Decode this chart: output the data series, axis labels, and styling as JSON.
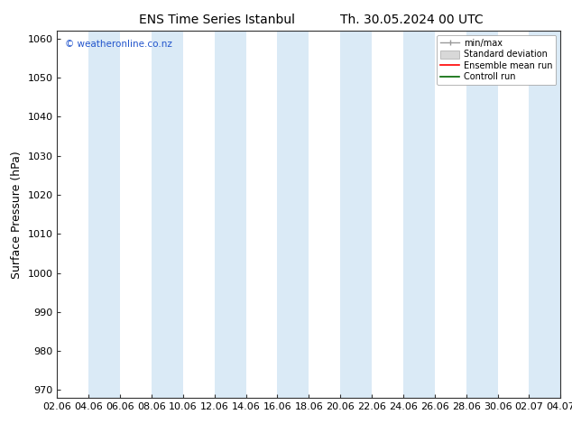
{
  "title_left": "ENS Time Series Istanbul",
  "title_right": "Th. 30.05.2024 00 UTC",
  "ylabel": "Surface Pressure (hPa)",
  "ylim": [
    968,
    1062
  ],
  "yticks": [
    970,
    980,
    990,
    1000,
    1010,
    1020,
    1030,
    1040,
    1050,
    1060
  ],
  "x_labels": [
    "02.06",
    "04.06",
    "06.06",
    "08.06",
    "10.06",
    "12.06",
    "14.06",
    "16.06",
    "18.06",
    "20.06",
    "22.06",
    "24.06",
    "26.06",
    "28.06",
    "30.06",
    "02.07",
    "04.07"
  ],
  "x_values": [
    0,
    2,
    4,
    6,
    8,
    10,
    12,
    14,
    16,
    18,
    20,
    22,
    24,
    26,
    28,
    30,
    32
  ],
  "band_color": "#daeaf6",
  "background_color": "#ffffff",
  "watermark": "© weatheronline.co.nz",
  "watermark_color": "#2255cc",
  "legend_labels": [
    "min/max",
    "Standard deviation",
    "Ensemble mean run",
    "Controll run"
  ],
  "legend_colors": [
    "#999999",
    "#cccccc",
    "#ff0000",
    "#006600"
  ],
  "title_fontsize": 10,
  "label_fontsize": 9,
  "tick_fontsize": 8
}
